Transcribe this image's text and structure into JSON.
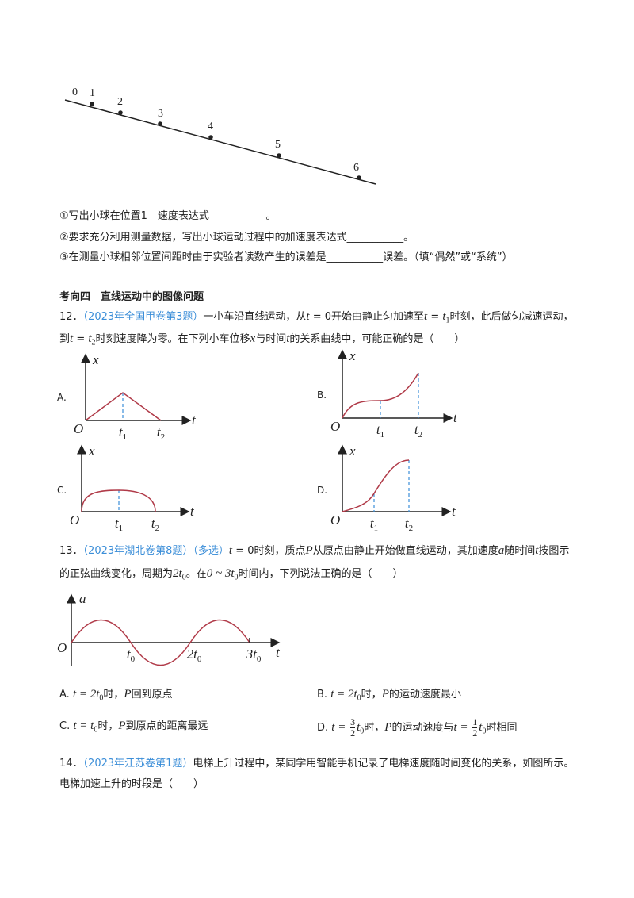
{
  "figure_labels": [
    "0",
    "1",
    "2",
    "3",
    "4",
    "5",
    "6"
  ],
  "q11_parts": [
    "①写出小球在位置1　速度表达式___________。",
    "②要求充分利用测量数据，写出小球运动过程中的加速度表达式___________。",
    "③在测量小球相邻位置间距时由于实验者读数产生的误差是___________误差。（填“偶然”或“系统”）"
  ],
  "section_heading": "考向四　直线运动中的图像问题",
  "q12": {
    "number": "12．",
    "source": "（2023年全国甲卷第3题）",
    "stem": [
      "一小车沿直线运动，从",
      "t",
      " = 0开始由静止匀加速至",
      "t",
      " = ",
      "t",
      "1",
      "时刻，此后做匀减速运动，到",
      "t",
      " = ",
      "t",
      "2",
      "时刻速度降为零。在下列小车位移",
      "x",
      "与时间",
      "t",
      "的关系曲线中，可能正确的是（　　）"
    ],
    "options": [
      {
        "label": "A.",
        "y_axis": "x",
        "x_axis": "t",
        "origin": "O",
        "t1": [
          "t",
          "1"
        ],
        "t2": [
          "t",
          "2"
        ]
      },
      {
        "label": "B.",
        "y_axis": "x",
        "x_axis": "t",
        "origin": "O",
        "t1": [
          "t",
          "1"
        ],
        "t2": [
          "t",
          "2"
        ]
      },
      {
        "label": "C.",
        "y_axis": "x",
        "x_axis": "t",
        "origin": "O",
        "t1": [
          "t",
          "1"
        ],
        "t2": [
          "t",
          "2"
        ]
      },
      {
        "label": "D.",
        "y_axis": "x",
        "x_axis": "t",
        "origin": "O",
        "t1": [
          "t",
          "1"
        ],
        "t2": [
          "t",
          "2"
        ]
      }
    ]
  },
  "q13": {
    "number": "13．",
    "source": "（2023年湖北卷第8题）",
    "tag": "（多选）",
    "stem": [
      "t",
      " = 0",
      "时刻，质点",
      "P",
      "从原点由静止开始做直线运动，其加速度",
      "a",
      "随时间",
      "t",
      "按图示的正弦曲线变化，周期为",
      "2t",
      "0",
      "。在",
      "0 ~ 3t",
      "0",
      "时间内，下列说法正确的是（　　）"
    ],
    "graph": {
      "y_axis": "a",
      "x_axis": "t",
      "origin": "O",
      "ticks": [
        [
          "t",
          "0"
        ],
        [
          "2t",
          "0"
        ],
        [
          "3t",
          "0"
        ]
      ]
    },
    "options": [
      {
        "label": "A.",
        "text": [
          "t = 2t",
          "0",
          "时，",
          "P",
          "回到原点"
        ]
      },
      {
        "label": "B.",
        "text": [
          "t = 2t",
          "0",
          "时，",
          "P",
          "的运动速度最小"
        ]
      },
      {
        "label": "C.",
        "text": [
          "t = t",
          "0",
          "时，",
          "P",
          "到原点的距离最远"
        ]
      },
      {
        "label": "D.",
        "text": [
          "t = ",
          "3",
          "2",
          "t",
          "0",
          "时，",
          "P",
          "的运动速度与",
          "t = ",
          "1",
          "2",
          "t",
          "0",
          "时相同"
        ]
      }
    ]
  },
  "q14": {
    "number": "14．",
    "source": "（2023年江苏卷第1题）",
    "stem": "电梯上升过程中，某同学用智能手机记录了电梯速度随时间变化的关系，如图所示。电梯加速上升的时段是（　　）"
  }
}
